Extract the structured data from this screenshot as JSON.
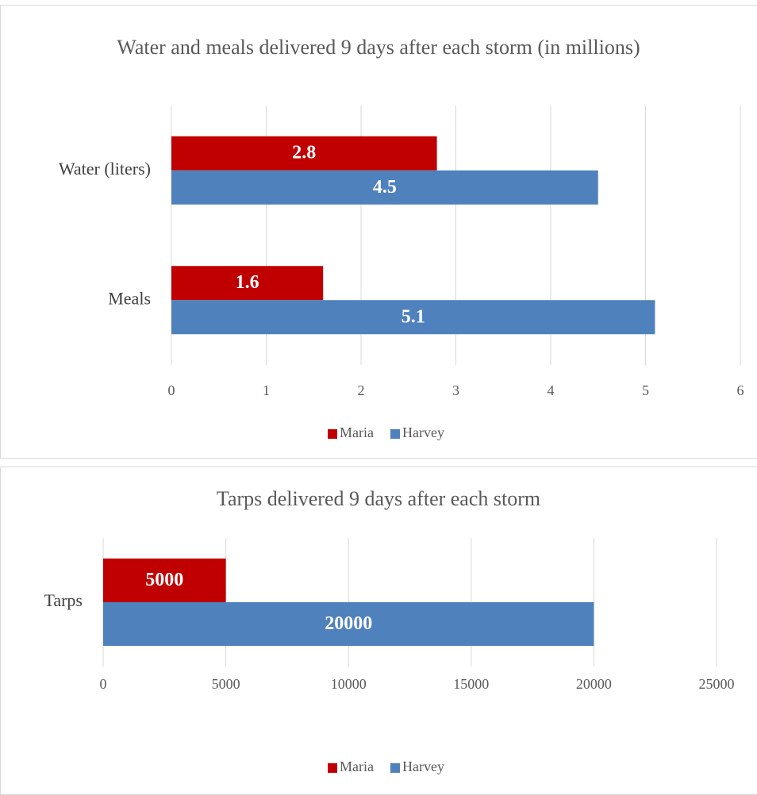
{
  "chart_data": [
    {
      "type": "bar",
      "orientation": "horizontal",
      "title": "Water and meals delivered 9 days after each storm (in millions)",
      "categories": [
        "Water (liters)",
        "Meals"
      ],
      "series": [
        {
          "name": "Maria",
          "color": "#c00000",
          "values": [
            2.8,
            1.6
          ]
        },
        {
          "name": "Harvey",
          "color": "#4f81bd",
          "values": [
            4.5,
            5.1
          ]
        }
      ],
      "xlim": [
        0,
        6
      ],
      "xticks": [
        0,
        1,
        2,
        3,
        4,
        5,
        6
      ],
      "grid": true,
      "legend": "bottom"
    },
    {
      "type": "bar",
      "orientation": "horizontal",
      "title": "Tarps delivered 9 days after each storm",
      "categories": [
        "Tarps"
      ],
      "series": [
        {
          "name": "Maria",
          "color": "#c00000",
          "values": [
            5000
          ]
        },
        {
          "name": "Harvey",
          "color": "#4f81bd",
          "values": [
            20000
          ]
        }
      ],
      "xlim": [
        0,
        25000
      ],
      "xticks": [
        0,
        5000,
        10000,
        15000,
        20000,
        25000
      ],
      "grid": true,
      "legend": "bottom"
    }
  ]
}
